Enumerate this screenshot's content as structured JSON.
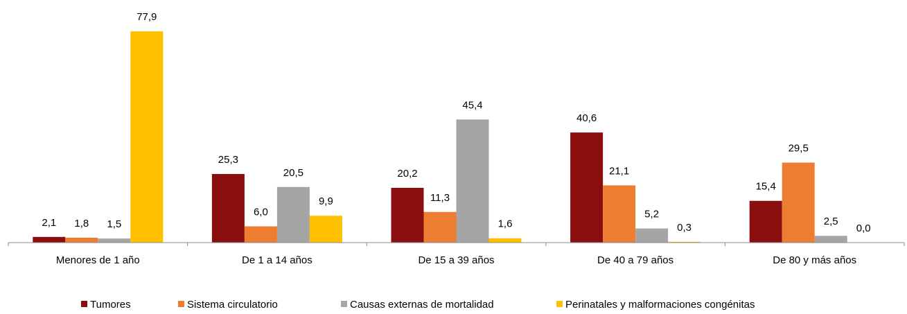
{
  "chart_data": {
    "type": "bar",
    "categories": [
      "Menores de 1 año",
      "De 1 a 14 años",
      "De 15 a 39 años",
      "De 40 a 79 años",
      "De 80 y más años"
    ],
    "series": [
      {
        "name": "Tumores",
        "color": "#8b0e0e",
        "values": [
          2.1,
          25.3,
          20.2,
          40.6,
          15.4
        ],
        "value_labels": [
          "2,1",
          "25,3",
          "20,2",
          "40,6",
          "15,4"
        ]
      },
      {
        "name": "Sistema circulatorio",
        "color": "#ed7d31",
        "values": [
          1.8,
          6.0,
          11.3,
          21.1,
          29.5
        ],
        "value_labels": [
          "1,8",
          "6,0",
          "11,3",
          "21,1",
          "29,5"
        ]
      },
      {
        "name": "Causas externas de mortalidad",
        "color": "#a5a5a5",
        "values": [
          1.5,
          20.5,
          45.4,
          5.2,
          2.5
        ],
        "value_labels": [
          "1,5",
          "20,5",
          "45,4",
          "5,2",
          "2,5"
        ]
      },
      {
        "name": "Perinatales y malformaciones congénitas",
        "color": "#ffc000",
        "values": [
          77.9,
          9.9,
          1.6,
          0.3,
          0.0
        ],
        "value_labels": [
          "77,9",
          "9,9",
          "1,6",
          "0,3",
          "0,0"
        ]
      }
    ],
    "ylim": [
      0,
      80
    ],
    "legend": "bottom"
  }
}
